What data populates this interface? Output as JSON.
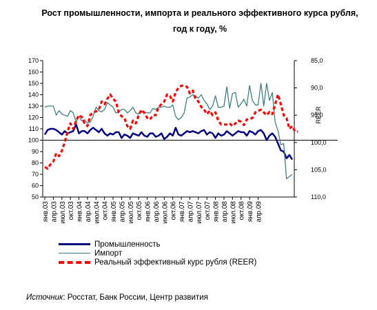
{
  "title_line1": "Рост промышленности, импорта и реального эффективного курса рубля,",
  "title_line2": "год к году, %",
  "source_label": "Источник",
  "source_text": ": Росстат, Банк России, Центр развития",
  "chart_data": {
    "type": "line",
    "title": "Рост промышленности, импорта и реального эффективного курса рубля, год к году, %",
    "x_tick_labels": [
      "янв.03",
      "апр.03",
      "июл.03",
      "окт.03",
      "янв.04",
      "апр.04",
      "июл.04",
      "окт.04",
      "янв.05",
      "апр.05",
      "июл.05",
      "окт.05",
      "янв.06",
      "апр.06",
      "июл.06",
      "окт.06",
      "янв.07",
      "апр.07",
      "июл.07",
      "окт.07",
      "янв.08",
      "апр.08",
      "июл.08",
      "окт.08",
      "янв.09",
      "апр.09"
    ],
    "y_left": {
      "range": [
        50,
        170
      ],
      "ticks": [
        50,
        60,
        70,
        80,
        90,
        100,
        110,
        120,
        130,
        140,
        150,
        160,
        170
      ]
    },
    "y_right": {
      "label": "REER",
      "range": [
        85,
        110
      ],
      "reversed": true,
      "ticks": [
        "85,0",
        "90,0",
        "95,0",
        "100,0",
        "105,0",
        "110,0"
      ]
    },
    "reference_line_left": 100,
    "grid": false,
    "legend_position": "bottom",
    "series": [
      {
        "name": "Промышленность",
        "axis": "left",
        "color": "#000080",
        "values": [
          105,
          109,
          110,
          110,
          109,
          107,
          105,
          108,
          106,
          107,
          108,
          114,
          106,
          108,
          108,
          106,
          109,
          111,
          109,
          107,
          110,
          106,
          104,
          106,
          105,
          107,
          107,
          102,
          105,
          104,
          102,
          106,
          105,
          104,
          107,
          104,
          103,
          106,
          106,
          103,
          104,
          106,
          101,
          103,
          106,
          104,
          111,
          105,
          104,
          106,
          108,
          107,
          108,
          107,
          106,
          108,
          109,
          105,
          107,
          106,
          102,
          106,
          104,
          105,
          108,
          106,
          104,
          106,
          108,
          107,
          107,
          104,
          108,
          107,
          105,
          108,
          109,
          106,
          100,
          104,
          106,
          103,
          97,
          91,
          90,
          84,
          87,
          83
        ]
      },
      {
        "name": "Импорт",
        "axis": "left",
        "color": "#3f7f7f",
        "values": [
          129,
          130,
          130,
          130,
          122,
          126,
          123,
          122,
          121,
          126,
          124,
          116,
          121,
          117,
          118,
          115,
          116,
          121,
          129,
          126,
          125,
          127,
          133,
          131,
          129,
          124,
          125,
          127,
          127,
          124,
          126,
          129,
          124,
          123,
          125,
          125,
          124,
          124,
          128,
          127,
          129,
          129,
          130,
          129,
          129,
          131,
          121,
          118,
          120,
          124,
          137,
          138,
          140,
          139,
          137,
          140,
          135,
          132,
          127,
          130,
          139,
          129,
          129,
          130,
          147,
          128,
          141,
          142,
          129,
          132,
          136,
          130,
          148,
          135,
          131,
          131,
          150,
          130,
          150,
          135,
          142,
          116,
          108,
          96,
          97,
          66,
          68,
          70
        ]
      },
      {
        "name": "Реальный эффективный курс рубля (REER)",
        "axis": "right",
        "color": "#ff0000",
        "values": [
          104.5,
          104.8,
          104.0,
          103.5,
          102.0,
          102.5,
          101.5,
          100.0,
          98.0,
          96.5,
          97.5,
          96.0,
          95.0,
          95.3,
          96.5,
          97.0,
          95.0,
          94.5,
          94.3,
          94.0,
          92.5,
          93.0,
          92.0,
          91.2,
          92.0,
          92.5,
          94.5,
          95.2,
          95.5,
          97.0,
          97.5,
          96.0,
          96.5,
          95.0,
          94.0,
          94.6,
          95.5,
          95.8,
          95.0,
          95.0,
          93.5,
          93.0,
          92.5,
          91.2,
          91.5,
          92.5,
          90.8,
          90.0,
          89.6,
          89.6,
          89.8,
          91.0,
          90.5,
          92.0,
          92.5,
          93.5,
          94.0,
          94.8,
          94.2,
          95.0,
          94.5,
          96.0,
          96.7,
          96.7,
          96.7,
          96.5,
          97.0,
          96.5,
          96.0,
          96.2,
          96.8,
          95.8,
          95.7,
          95.5,
          94.5,
          94.2,
          94.0,
          94.5,
          95.0,
          94.4,
          94.8,
          93.0,
          91.2,
          93.0,
          95.0,
          95.5,
          97.5,
          97.0,
          98.0,
          98.0
        ]
      }
    ]
  }
}
